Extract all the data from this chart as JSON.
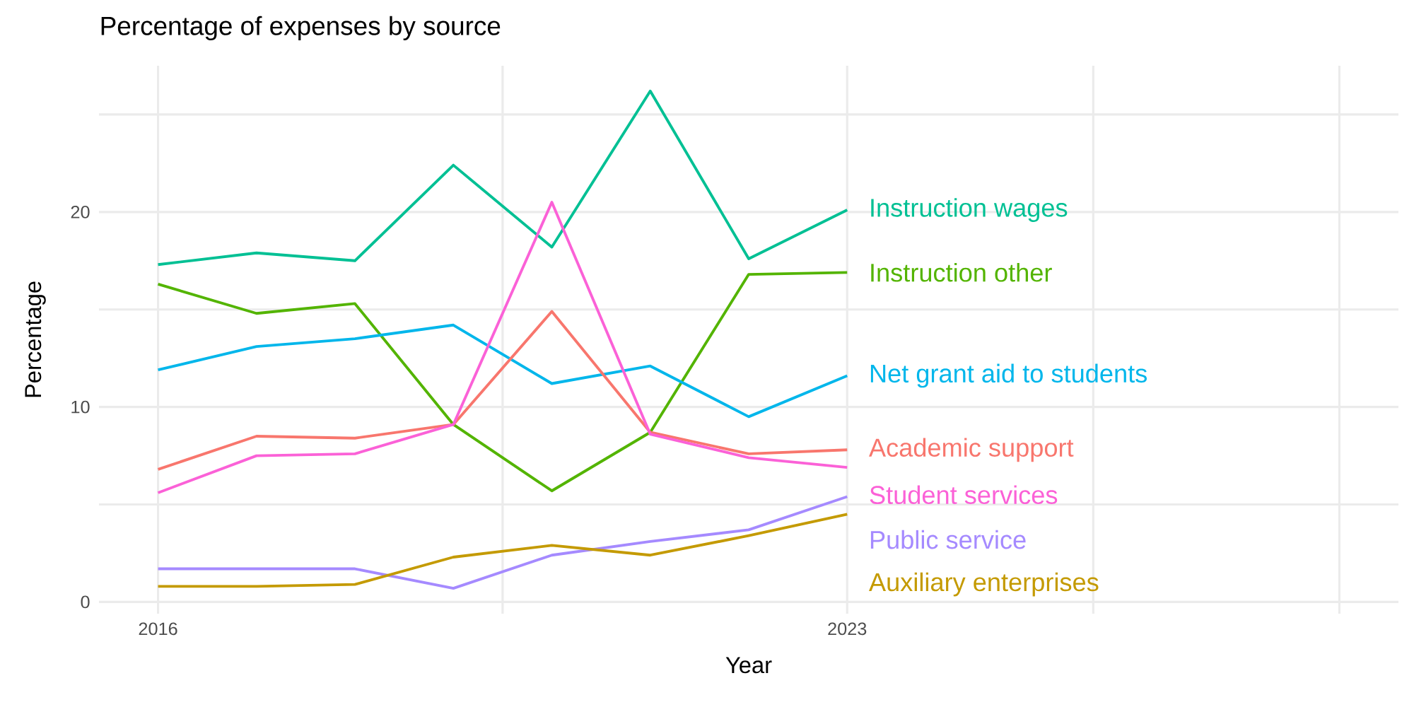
{
  "chart_data": {
    "type": "line",
    "title": "Percentage of expenses by source",
    "xlabel": "Year",
    "ylabel": "Percentage",
    "x": [
      2016,
      2017,
      2018,
      2019,
      2020,
      2021,
      2022,
      2023
    ],
    "xlim": [
      2015.4,
      2028.6
    ],
    "xticks": [
      2016,
      {
        "value": 2019.5,
        "label": null
      },
      2023,
      {
        "value": 2025.5,
        "label": null
      },
      {
        "value": 2028,
        "label": null
      }
    ],
    "ylim": [
      -0.6,
      27.5
    ],
    "yticks": [
      0,
      {
        "value": 5,
        "label": null
      },
      10,
      {
        "value": 15,
        "label": null
      },
      20,
      {
        "value": 25,
        "label": null
      }
    ],
    "grid": true,
    "series": [
      {
        "name": "Instruction wages",
        "color": "#00c094",
        "values": [
          17.3,
          17.9,
          17.5,
          22.4,
          18.2,
          26.2,
          17.6,
          20.1
        ]
      },
      {
        "name": "Instruction other",
        "color": "#53b400",
        "values": [
          16.3,
          14.8,
          15.3,
          9.1,
          5.7,
          8.7,
          16.8,
          16.9
        ]
      },
      {
        "name": "Net grant aid to students",
        "color": "#00b6eb",
        "values": [
          11.9,
          13.1,
          13.5,
          14.2,
          11.2,
          12.1,
          9.5,
          11.6
        ]
      },
      {
        "name": "Academic support",
        "color": "#f8766d",
        "values": [
          6.8,
          8.5,
          8.4,
          9.1,
          14.9,
          8.7,
          7.6,
          7.8
        ]
      },
      {
        "name": "Student services",
        "color": "#fb61d7",
        "values": [
          5.6,
          7.5,
          7.6,
          9.1,
          20.5,
          8.6,
          7.4,
          6.9
        ]
      },
      {
        "name": "Public service",
        "color": "#a58aff",
        "values": [
          1.7,
          1.7,
          1.7,
          0.7,
          2.4,
          3.1,
          3.7,
          5.4
        ]
      },
      {
        "name": "Auxiliary enterprises",
        "color": "#c49a00",
        "values": [
          0.8,
          0.8,
          0.9,
          2.3,
          2.9,
          2.4,
          3.4,
          4.5
        ]
      }
    ]
  }
}
